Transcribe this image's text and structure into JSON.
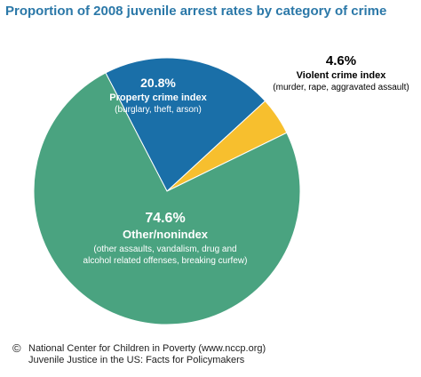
{
  "chart_data": {
    "type": "pie",
    "title": "Proportion of 2008 juvenile arrest rates by category of crime",
    "slices": [
      {
        "name": "Violent crime index",
        "detail": "(murder, rape, aggravated assault)",
        "value": 4.6,
        "label": "4.6%",
        "color": "#f7bf2e"
      },
      {
        "name": "Property crime index",
        "detail": "(burglary, theft, arson)",
        "value": 20.8,
        "label": "20.8%",
        "color": "#1a6fa8"
      },
      {
        "name": "Other/nonindex",
        "detail_lines": [
          "(other assaults, vandalism, drug and",
          "alcohol related offenses, breaking curfew)"
        ],
        "value": 74.6,
        "label": "74.6%",
        "color": "#4aa380"
      }
    ]
  },
  "footer": {
    "copyright_symbol": "©",
    "line1": "National Center for Children in Poverty (www.nccp.org)",
    "line2": "Juvenile Justice in the US: Facts for Policymakers"
  }
}
